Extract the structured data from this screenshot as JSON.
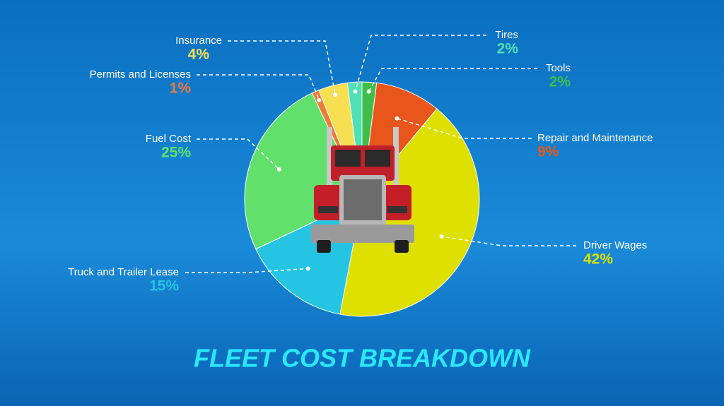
{
  "chart_data": {
    "type": "pie",
    "title": "FLEET COST BREAKDOWN",
    "categories": [
      "Tires",
      "Tools",
      "Repair and Maintenance",
      "Driver Wages",
      "Truck and Trailer Lease",
      "Fuel Cost",
      "Permits and Licenses",
      "Insurance"
    ],
    "values": [
      2,
      2,
      9,
      42,
      15,
      25,
      1,
      4
    ],
    "value_labels": [
      "2%",
      "2%",
      "9%",
      "42%",
      "15%",
      "25%",
      "1%",
      "4%"
    ],
    "colors": [
      "#4fe0b4",
      "#3fbf4a",
      "#e8561c",
      "#dde000",
      "#25c4e2",
      "#62e06c",
      "#f07a3a",
      "#f6e052"
    ]
  }
}
